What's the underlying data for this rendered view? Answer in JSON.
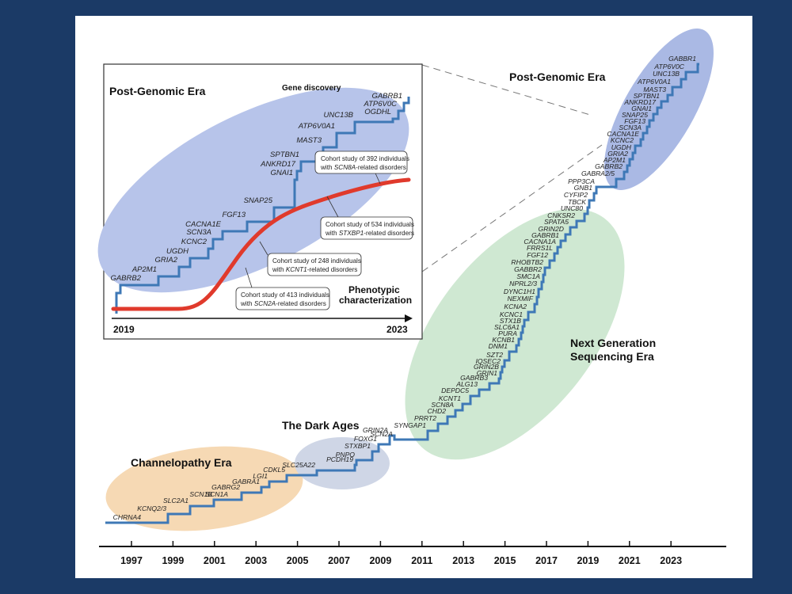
{
  "main_timeline": {
    "axis_years": [
      "1997",
      "1999",
      "2001",
      "2003",
      "2005",
      "2007",
      "2009",
      "2011",
      "2013",
      "2015",
      "2017",
      "2019",
      "2021",
      "2023"
    ],
    "eras": [
      {
        "label": "Channelopathy Era",
        "color": "#f6d9b4"
      },
      {
        "label": "The Dark Ages",
        "color": "#cfd6e6"
      },
      {
        "label_line1": "Next Generation",
        "label_line2": "Sequencing Era",
        "color": "#cfe8d2"
      },
      {
        "label": "Post-Genomic Era",
        "color": "#aab9e4"
      }
    ],
    "genes": [
      "CHRNA4",
      "KCNQ2/3",
      "SLC2A1",
      "SCN1B",
      "SCN1A",
      "GABRG2",
      "GABRA1",
      "LGI1",
      "CDKL5",
      "SLC25A22",
      "PCDH19",
      "PNPO",
      "STXBP1",
      "FOXG1",
      "GRIN2A",
      "SCN2A",
      "SYNGAP1",
      "PRRT2",
      "CHD2",
      "SCN8A",
      "KCNT1",
      "DEPDC5",
      "ALG13",
      "GABRB3",
      "GRIN1",
      "GRIN2B",
      "IQSEC2",
      "SZT2",
      "DNM1",
      "KCNB1",
      "PURA",
      "SLC6A1",
      "STX1B",
      "KCNC1",
      "KCNA2",
      "NEXMIF",
      "DYNC1H1",
      "NPRL2/3",
      "SMC1A",
      "GABBR2",
      "RHOBTB2",
      "FGF12",
      "FRRS1L",
      "CACNA1A",
      "GABRB1",
      "GRIN2D",
      "SPATA5",
      "CNKSR2",
      "UNC80",
      "TBCK",
      "CYFIP2",
      "GNB1",
      "PPP3CA",
      "GABRA2/5",
      "GABRB2",
      "AP2M1",
      "GRIA2",
      "UGDH",
      "KCNC2",
      "CACNA1E",
      "SCN3A",
      "FGF13",
      "SNAP25",
      "GNAI1",
      "ANKRD17",
      "SPTBN1",
      "MAST3",
      "ATP6V0A1",
      "UNC13B",
      "ATP6V0C",
      "GABBR1"
    ],
    "line_color": "#3e78b6"
  },
  "inset": {
    "title": "Post-Genomic Era",
    "subtitle": "Gene discovery",
    "genes": [
      "GABRB2",
      "AP2M1",
      "GRIA2",
      "UGDH",
      "KCNC2",
      "SCN3A",
      "CACNA1E",
      "FGF13",
      "SNAP25",
      "GNAI1",
      "ANKRD17",
      "SPTBN1",
      "MAST3",
      "ATP6V0A1",
      "UNC13B",
      "OGDHL",
      "ATP6V0C",
      "GABRB1"
    ],
    "cohort_notes": [
      {
        "line1": "Cohort study of 392 individuals",
        "gene": "SCN8A",
        "rest": "-related disorders"
      },
      {
        "line1": "Cohort study of 534 individuals",
        "gene": "STXBP1",
        "rest": "-related disorders"
      },
      {
        "line1": "Cohort study of 248 individuals",
        "gene": "KCNT1",
        "rest": "-related disorders"
      },
      {
        "line1": "Cohort study of 413 individuals",
        "gene": "SCN2A",
        "rest": "-related disorders"
      }
    ],
    "phenotypic_line1": "Phenotypic",
    "phenotypic_line2": "characterization",
    "year_start": "2019",
    "year_end": "2023",
    "red_curve_color": "#e03a2c"
  }
}
